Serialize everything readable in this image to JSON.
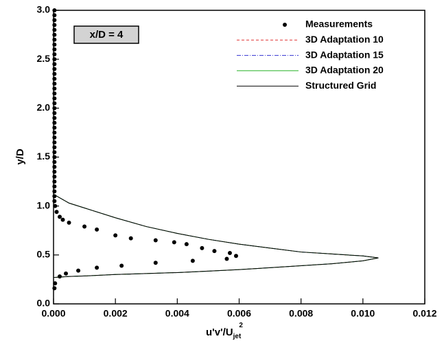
{
  "chart_data": {
    "type": "line",
    "annotation": "x/D = 4",
    "xlabel": "u'v'/U",
    "xlabel_sub": "jet",
    "xlabel_sup": "2",
    "ylabel": "y/D",
    "xlim": [
      0,
      0.012
    ],
    "xticks": [
      {
        "value": 0,
        "label": "0.000"
      },
      {
        "value": 0.002,
        "label": "0.002"
      },
      {
        "value": 0.004,
        "label": "0.004"
      },
      {
        "value": 0.006,
        "label": "0.006"
      },
      {
        "value": 0.008,
        "label": "0.008"
      },
      {
        "value": 0.01,
        "label": "0.010"
      },
      {
        "value": 0.012,
        "label": "0.012"
      }
    ],
    "ylim": [
      0,
      3
    ],
    "yticks": [
      {
        "value": 0,
        "label": "0.0"
      },
      0.5,
      {
        "value": 1,
        "label": "1.0"
      },
      1.5,
      {
        "value": 2,
        "label": "2.0"
      },
      2.5,
      {
        "value": 3,
        "label": "3.0"
      }
    ],
    "legend": "upper right",
    "series": [
      {
        "name": "Measurements",
        "color": "#000000",
        "style": "markers",
        "x": [
          3e-05,
          3e-05,
          3e-05,
          3e-05,
          3e-05,
          3e-05,
          3e-05,
          3e-05,
          3e-05,
          3e-05,
          3e-05,
          3e-05,
          3e-05,
          3e-05,
          3e-05,
          3e-05,
          3e-05,
          3e-05,
          3e-05,
          3e-05,
          3e-05,
          3e-05,
          3e-05,
          3e-05,
          3e-05,
          3e-05,
          3e-05,
          3e-05,
          3e-05,
          3e-05,
          3e-05,
          3e-05,
          3e-05,
          3e-05,
          3e-05,
          3e-05,
          3e-05,
          3e-05,
          3e-05,
          3e-05,
          5e-05,
          0.0001,
          0.0002,
          0.0003,
          0.0005,
          0.001,
          0.0014,
          0.002,
          0.0025,
          0.0033,
          0.0039,
          0.0043,
          0.0048,
          0.0052,
          0.0057,
          0.0059,
          0.0056,
          0.0045,
          0.0033,
          0.0022,
          0.0014,
          0.0008,
          0.0004,
          0.0002,
          5e-05,
          3e-05
        ],
        "values": [
          1.05,
          1.1,
          1.15,
          1.2,
          1.25,
          1.3,
          1.35,
          1.4,
          1.45,
          1.5,
          1.55,
          1.6,
          1.65,
          1.7,
          1.75,
          1.8,
          1.85,
          1.9,
          1.95,
          2.0,
          2.05,
          2.1,
          2.15,
          2.2,
          2.25,
          2.3,
          2.35,
          2.4,
          2.45,
          2.5,
          2.55,
          2.6,
          2.65,
          2.7,
          2.75,
          2.8,
          2.85,
          2.9,
          2.95,
          3.0,
          1.0,
          0.94,
          0.89,
          0.86,
          0.83,
          0.79,
          0.76,
          0.7,
          0.67,
          0.65,
          0.63,
          0.61,
          0.57,
          0.54,
          0.52,
          0.49,
          0.46,
          0.44,
          0.42,
          0.39,
          0.37,
          0.34,
          0.31,
          0.28,
          0.21,
          0.16
        ]
      },
      {
        "name": "3D Adaptation 10",
        "color": "#e03030",
        "dash": "4,3",
        "x": [
          0,
          0.0005,
          0.001,
          0.002,
          0.003,
          0.004,
          0.005,
          0.006,
          0.007,
          0.008,
          0.009,
          0.01,
          0.0105,
          0.01,
          0.009,
          0.008,
          0.007,
          0.006,
          0.005,
          0.004,
          0.003,
          0.002,
          0.001,
          0.0005,
          0
        ],
        "values": [
          1.12,
          1.03,
          0.98,
          0.88,
          0.79,
          0.72,
          0.66,
          0.61,
          0.57,
          0.53,
          0.51,
          0.49,
          0.47,
          0.44,
          0.41,
          0.39,
          0.37,
          0.35,
          0.335,
          0.32,
          0.31,
          0.3,
          0.285,
          0.28,
          0.27
        ]
      },
      {
        "name": "3D Adaptation 15",
        "color": "#3030d0",
        "dash": "6,2,1,2",
        "x": [
          0,
          0.0005,
          0.001,
          0.002,
          0.003,
          0.004,
          0.005,
          0.006,
          0.007,
          0.008,
          0.009,
          0.01,
          0.0105,
          0.01,
          0.009,
          0.008,
          0.007,
          0.006,
          0.005,
          0.004,
          0.003,
          0.002,
          0.001,
          0.0005,
          0
        ],
        "values": [
          1.12,
          1.03,
          0.98,
          0.88,
          0.79,
          0.72,
          0.66,
          0.61,
          0.57,
          0.53,
          0.51,
          0.49,
          0.47,
          0.44,
          0.41,
          0.39,
          0.37,
          0.35,
          0.335,
          0.32,
          0.31,
          0.3,
          0.285,
          0.28,
          0.27
        ]
      },
      {
        "name": "3D Adaptation 20",
        "color": "#20b020",
        "x": [
          0,
          0.0005,
          0.001,
          0.002,
          0.003,
          0.004,
          0.005,
          0.006,
          0.007,
          0.008,
          0.009,
          0.01,
          0.0105,
          0.01,
          0.009,
          0.008,
          0.007,
          0.006,
          0.005,
          0.004,
          0.003,
          0.002,
          0.001,
          0.0005,
          0
        ],
        "values": [
          1.12,
          1.03,
          0.98,
          0.88,
          0.79,
          0.72,
          0.66,
          0.61,
          0.57,
          0.53,
          0.51,
          0.49,
          0.47,
          0.44,
          0.41,
          0.39,
          0.37,
          0.35,
          0.335,
          0.32,
          0.31,
          0.3,
          0.285,
          0.28,
          0.27
        ]
      },
      {
        "name": "Structured Grid",
        "color": "#000000",
        "x": [
          0,
          0.0005,
          0.001,
          0.002,
          0.003,
          0.004,
          0.005,
          0.006,
          0.007,
          0.008,
          0.009,
          0.01,
          0.0105,
          0.01,
          0.009,
          0.008,
          0.007,
          0.006,
          0.005,
          0.004,
          0.003,
          0.002,
          0.001,
          0.0005,
          0
        ],
        "values": [
          1.12,
          1.03,
          0.98,
          0.88,
          0.79,
          0.72,
          0.66,
          0.61,
          0.57,
          0.53,
          0.51,
          0.49,
          0.47,
          0.44,
          0.41,
          0.39,
          0.37,
          0.35,
          0.335,
          0.32,
          0.31,
          0.3,
          0.285,
          0.28,
          0.27
        ]
      }
    ]
  }
}
